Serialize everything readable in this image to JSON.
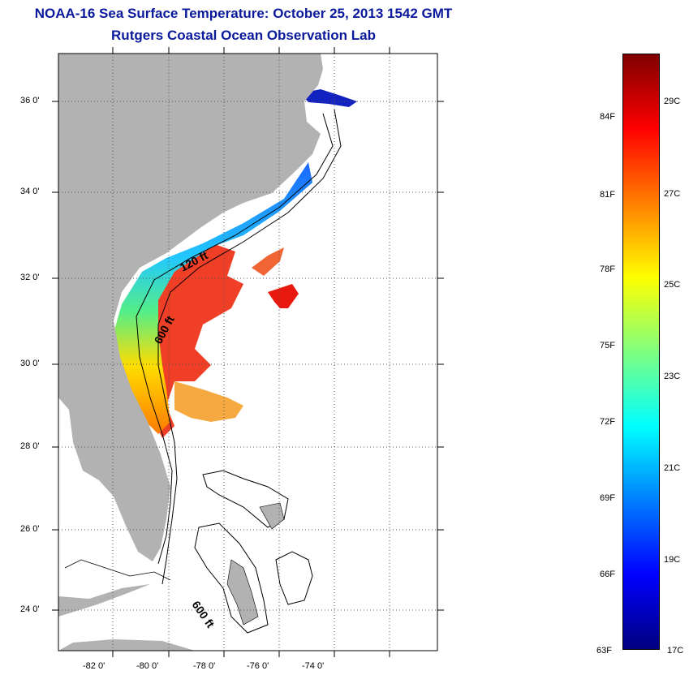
{
  "title": {
    "line1": "NOAA-16 Sea Surface Temperature:  October 25, 2013 1542 GMT",
    "line2": "Rutgers Coastal Ocean Observation Lab"
  },
  "map": {
    "lat_labels": [
      "36 0'",
      "34 0'",
      "32 0'",
      "30 0'",
      "28 0'",
      "26 0'",
      "24 0'"
    ],
    "lon_labels": [
      "-82 0'",
      "-80 0'",
      "-78 0'",
      "-76 0'",
      "-74 0'"
    ],
    "contour_labels": [
      "120 ft",
      "600 ft",
      "600 ft"
    ],
    "colors": {
      "land": "#b2b2b2",
      "frame": "#000000",
      "grid": "#555555"
    }
  },
  "colorbar": {
    "fahrenheit": [
      "84F",
      "81F",
      "78F",
      "75F",
      "72F",
      "69F",
      "66F",
      "63F"
    ],
    "celsius": [
      "29C",
      "27C",
      "25C",
      "23C",
      "21C",
      "19C",
      "17C"
    ],
    "colors": [
      "#00007f",
      "#0000ff",
      "#007fff",
      "#00ffff",
      "#7fff7f",
      "#ffff00",
      "#ff7f00",
      "#ff0000",
      "#7f0000"
    ]
  }
}
